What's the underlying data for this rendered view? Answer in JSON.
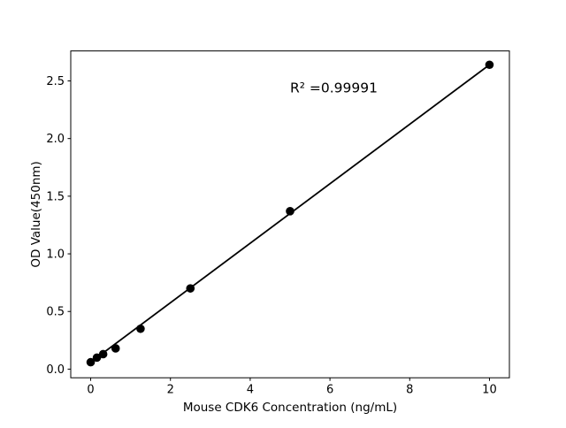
{
  "chart_data": {
    "type": "scatter",
    "title": "",
    "xlabel": "Mouse CDK6 Concentration (ng/mL)",
    "ylabel": "OD Value(450nm)",
    "x": [
      0,
      0.156,
      0.3125,
      0.625,
      1.25,
      2.5,
      5,
      10
    ],
    "y": [
      0.06,
      0.1,
      0.13,
      0.18,
      0.35,
      0.7,
      1.37,
      2.64
    ],
    "fit_line": {
      "x": [
        0,
        10
      ],
      "y": [
        0.06,
        2.64
      ]
    },
    "annotation": {
      "text": "R² =0.99991",
      "x": 5.0,
      "y": 2.4
    },
    "xticks": [
      0,
      2,
      4,
      6,
      8,
      10
    ],
    "xtick_labels": [
      "0",
      "2",
      "4",
      "6",
      "8",
      "10"
    ],
    "yticks": [
      0.0,
      0.5,
      1.0,
      1.5,
      2.0,
      2.5
    ],
    "ytick_labels": [
      "0.0",
      "0.5",
      "1.0",
      "1.5",
      "2.0",
      "2.5"
    ],
    "xlim": [
      -0.5,
      10.5
    ],
    "ylim": [
      -0.075,
      2.76
    ],
    "grid": false,
    "legend": null,
    "marker_color": "#000000",
    "line_color": "#000000",
    "axis_color": "#000000",
    "background_color": "#ffffff"
  }
}
